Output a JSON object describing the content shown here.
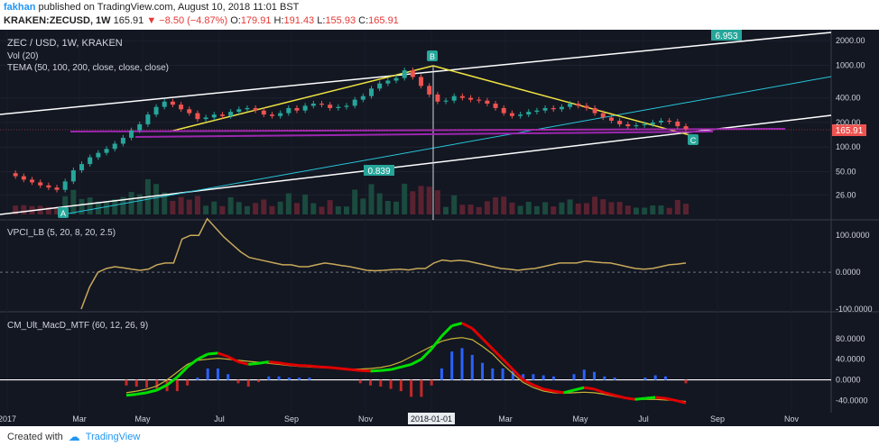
{
  "header": {
    "author": "fakhan",
    "published": "published on TradingView.com, August 10, 2018 11:01 BST",
    "symbol": "KRAKEN:ZECUSD, 1W",
    "last": "165.91",
    "change": "▼ −8.50 (−4.87%)",
    "o_label": "O:",
    "o": "179.91",
    "h_label": "H:",
    "h": "191.43",
    "l_label": "L:",
    "l": "155.93",
    "c_label": "C:",
    "c": "165.91"
  },
  "panes": {
    "main": {
      "title": "ZEC / USD, 1W, KRAKEN",
      "vol": "Vol (20)",
      "tema": "TEMA (50, 100, 200, close, close, close)"
    },
    "vpci": {
      "title": "VPCI_LB (5, 20, 8, 20, 2.5)"
    },
    "macd": {
      "title": "CM_Ult_MacD_MTF (60, 12, 26, 9)"
    }
  },
  "annotations": {
    "a": "A",
    "b": "B",
    "c": "C",
    "upper_value": "6.953",
    "lower_value": "0.839"
  },
  "price_label": "165.91",
  "footer": {
    "created": "Created with",
    "brand": "TradingView"
  },
  "colors": {
    "up": "#26a69a",
    "down": "#ef5350",
    "bg": "#131722",
    "yellow": "#f0e442",
    "purple": "#9c27b0",
    "cyan": "#26c6da"
  },
  "chart_data": [
    {
      "type": "candlestick",
      "title": "ZEC / USD, 1W, KRAKEN",
      "y_axis": {
        "scale": "log",
        "ticks": [
          "2000.00",
          "1000.00",
          "400.00",
          "200.00",
          "100.00",
          "50.00",
          "26.00"
        ]
      },
      "x_axis": {
        "ticks": [
          "2017",
          "Mar",
          "May",
          "Jul",
          "Sep",
          "Nov",
          "2018-01-01",
          "Mar",
          "May",
          "Jul",
          "Sep",
          "Nov"
        ]
      },
      "series_approx_close": [
        48,
        44,
        40,
        37,
        34,
        32,
        30,
        38,
        52,
        62,
        75,
        85,
        95,
        110,
        130,
        160,
        190,
        250,
        310,
        360,
        330,
        290,
        260,
        220,
        230,
        250,
        240,
        270,
        290,
        300,
        280,
        250,
        240,
        260,
        300,
        280,
        320,
        340,
        330,
        300,
        310,
        320,
        380,
        420,
        520,
        600,
        650,
        700,
        870,
        720,
        560,
        440,
        360,
        370,
        420,
        400,
        380,
        370,
        340,
        300,
        260,
        240,
        250,
        270,
        280,
        300,
        290,
        310,
        340,
        320,
        300,
        260,
        230,
        210,
        190,
        180,
        185,
        190,
        200,
        210,
        205,
        180,
        166
      ],
      "volume_description": "weekly volume bars in lower part of price pane",
      "overlays": [
        "TEMA lines",
        "trend channel lines",
        "ABC pattern"
      ]
    },
    {
      "type": "line",
      "title": "VPCI_LB (5, 20, 8, 20, 2.5)",
      "y_axis": {
        "ticks": [
          "100.0000",
          "0.0000",
          "-100.0000"
        ],
        "ylim": [
          -100,
          120
        ]
      },
      "series": [
        {
          "values": [
            -100,
            -40,
            0,
            10,
            15,
            12,
            8,
            5,
            8,
            20,
            25,
            25,
            90,
            100,
            100,
            145,
            120,
            95,
            75,
            55,
            40,
            35,
            30,
            25,
            20,
            20,
            15,
            15,
            20,
            25,
            22,
            18,
            15,
            10,
            5,
            4,
            5,
            7,
            8,
            6,
            10,
            10,
            25,
            33,
            30,
            32,
            30,
            25,
            20,
            15,
            10,
            8,
            5,
            8,
            10,
            15,
            20,
            25,
            25,
            25,
            30,
            28,
            26,
            25,
            20,
            15,
            10,
            8,
            10,
            15,
            20,
            22,
            25
          ]
        }
      ]
    },
    {
      "type": "line",
      "title": "CM_Ult_MacD_MTF (60, 12, 26, 9)",
      "y_axis": {
        "ticks": [
          "80.0000",
          "40.0000",
          "0.0000",
          "-40.0000"
        ],
        "ylim": [
          -55,
          120
        ]
      },
      "series": [
        {
          "values": [
            -30,
            -28,
            -25,
            -20,
            -10,
            5,
            25,
            40,
            50,
            52,
            45,
            35,
            30,
            32,
            35,
            33,
            30,
            28,
            27,
            25,
            24,
            22,
            20,
            18,
            17,
            18,
            20,
            25,
            30,
            40,
            60,
            85,
            105,
            110,
            100,
            80,
            60,
            40,
            20,
            0,
            -10,
            -18,
            -22,
            -25,
            -20,
            -15,
            -18,
            -25,
            -30,
            -35,
            -38,
            -36,
            -34,
            -36,
            -40,
            -45
          ]
        },
        {
          "values": [
            -25,
            -22,
            -18,
            -12,
            0,
            15,
            30,
            38,
            40,
            42,
            40,
            38,
            36,
            34,
            32,
            30,
            28,
            26,
            25,
            24,
            23,
            22,
            21,
            21,
            22,
            24,
            28,
            35,
            45,
            55,
            65,
            75,
            80,
            82,
            78,
            65,
            50,
            30,
            12,
            -5,
            -15,
            -22,
            -25,
            -26,
            -25,
            -24,
            -25,
            -28,
            -32,
            -36,
            -38,
            -38,
            -38,
            -39,
            -40,
            -42
          ]
        }
      ],
      "histogram": [
        0,
        0,
        0,
        0,
        0,
        0,
        0,
        0,
        0,
        0,
        0,
        0,
        0,
        0,
        0,
        0,
        0,
        0,
        0,
        0,
        0,
        0,
        0,
        0,
        0,
        0,
        0,
        0,
        0,
        0,
        0,
        0,
        0,
        0,
        0,
        0,
        0,
        0,
        0,
        0,
        0,
        0,
        0,
        0,
        0,
        0,
        0,
        0,
        0,
        0,
        0,
        0,
        0,
        0,
        0,
        0,
        0,
        0,
        0,
        0,
        0,
        0,
        0,
        0,
        0,
        0,
        0,
        0,
        0,
        0,
        0,
        0,
        0,
        0,
        0,
        0
      ]
    }
  ]
}
